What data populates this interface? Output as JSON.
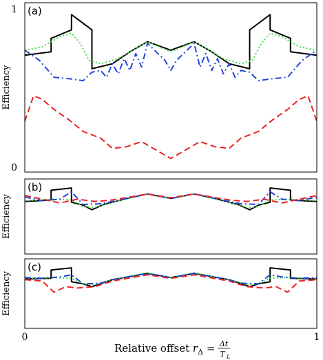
{
  "chart_data": [
    {
      "type": "line",
      "panel_label": "(a)",
      "ylabel": "Efficiency",
      "ytick_labels": [
        "0",
        "1"
      ],
      "xtick_labels": [],
      "xlim": [
        0,
        1
      ],
      "ylim": [
        0,
        1
      ],
      "series": [
        {
          "color": "#000000",
          "dash": "solid",
          "x": [
            0,
            0.09,
            0.09,
            0.16,
            0.16,
            0.23,
            0.23,
            0.3,
            0.36,
            0.42,
            0.5,
            0.58,
            0.64,
            0.7,
            0.77,
            0.77,
            0.84,
            0.84,
            0.91,
            0.91,
            1
          ],
          "y": [
            0.69,
            0.71,
            0.79,
            0.84,
            0.93,
            0.84,
            0.61,
            0.64,
            0.71,
            0.77,
            0.72,
            0.77,
            0.71,
            0.64,
            0.61,
            0.84,
            0.93,
            0.84,
            0.79,
            0.71,
            0.69
          ]
        },
        {
          "color": "#44dd44",
          "dash": "dot",
          "x": [
            0,
            0.06,
            0.12,
            0.16,
            0.19,
            0.22,
            0.26,
            0.32,
            0.38,
            0.42,
            0.5,
            0.58,
            0.62,
            0.68,
            0.74,
            0.78,
            0.81,
            0.84,
            0.88,
            0.94,
            1
          ],
          "y": [
            0.72,
            0.74,
            0.8,
            0.82,
            0.76,
            0.66,
            0.64,
            0.67,
            0.73,
            0.77,
            0.71,
            0.77,
            0.73,
            0.67,
            0.64,
            0.66,
            0.76,
            0.82,
            0.8,
            0.74,
            0.72
          ]
        },
        {
          "color": "#2244dd",
          "dash": "dashdot",
          "x": [
            0,
            0.05,
            0.1,
            0.16,
            0.2,
            0.23,
            0.26,
            0.28,
            0.3,
            0.32,
            0.34,
            0.36,
            0.38,
            0.4,
            0.42,
            0.48,
            0.5,
            0.52,
            0.58,
            0.6,
            0.62,
            0.64,
            0.66,
            0.68,
            0.7,
            0.72,
            0.74,
            0.77,
            0.8,
            0.84,
            0.9,
            0.95,
            1
          ],
          "y": [
            0.72,
            0.66,
            0.56,
            0.55,
            0.54,
            0.59,
            0.6,
            0.56,
            0.64,
            0.58,
            0.67,
            0.6,
            0.7,
            0.62,
            0.76,
            0.66,
            0.6,
            0.66,
            0.76,
            0.62,
            0.7,
            0.6,
            0.67,
            0.58,
            0.64,
            0.56,
            0.6,
            0.59,
            0.54,
            0.55,
            0.56,
            0.66,
            0.72
          ]
        },
        {
          "color": "#ee2222",
          "dash": "dash",
          "x": [
            0,
            0.03,
            0.06,
            0.1,
            0.15,
            0.2,
            0.26,
            0.3,
            0.35,
            0.4,
            0.45,
            0.5,
            0.55,
            0.6,
            0.65,
            0.7,
            0.74,
            0.8,
            0.85,
            0.9,
            0.94,
            0.97,
            1
          ],
          "y": [
            0.3,
            0.45,
            0.43,
            0.37,
            0.31,
            0.24,
            0.2,
            0.14,
            0.15,
            0.18,
            0.13,
            0.08,
            0.13,
            0.18,
            0.15,
            0.14,
            0.2,
            0.24,
            0.31,
            0.37,
            0.43,
            0.45,
            0.3
          ]
        }
      ]
    },
    {
      "type": "line",
      "panel_label": "(b)",
      "ylabel": "Efficiency",
      "ytick_labels": [],
      "xtick_labels": [],
      "xlim": [
        0,
        1
      ],
      "ylim": [
        0,
        1
      ],
      "series": [
        {
          "color": "#000000",
          "dash": "solid",
          "x": [
            0,
            0.09,
            0.09,
            0.16,
            0.16,
            0.2,
            0.23,
            0.27,
            0.3,
            0.35,
            0.42,
            0.5,
            0.58,
            0.65,
            0.7,
            0.73,
            0.77,
            0.8,
            0.84,
            0.84,
            0.91,
            0.91,
            1
          ],
          "y": [
            0.7,
            0.72,
            0.85,
            0.88,
            0.69,
            0.65,
            0.59,
            0.66,
            0.69,
            0.74,
            0.8,
            0.74,
            0.8,
            0.74,
            0.69,
            0.66,
            0.59,
            0.65,
            0.69,
            0.88,
            0.85,
            0.72,
            0.7
          ]
        },
        {
          "color": "#44dd44",
          "dash": "dot",
          "x": [
            0,
            0.1,
            0.16,
            0.2,
            0.24,
            0.3,
            0.42,
            0.5,
            0.58,
            0.7,
            0.76,
            0.8,
            0.84,
            0.9,
            1
          ],
          "y": [
            0.71,
            0.73,
            0.72,
            0.63,
            0.62,
            0.69,
            0.8,
            0.74,
            0.8,
            0.69,
            0.62,
            0.63,
            0.72,
            0.73,
            0.71
          ]
        },
        {
          "color": "#2244dd",
          "dash": "dashdot",
          "x": [
            0,
            0.06,
            0.12,
            0.16,
            0.2,
            0.26,
            0.3,
            0.42,
            0.5,
            0.58,
            0.7,
            0.74,
            0.8,
            0.84,
            0.88,
            0.94,
            1
          ],
          "y": [
            0.76,
            0.71,
            0.73,
            0.83,
            0.66,
            0.67,
            0.7,
            0.8,
            0.74,
            0.8,
            0.7,
            0.67,
            0.66,
            0.83,
            0.73,
            0.71,
            0.76
          ]
        },
        {
          "color": "#ee2222",
          "dash": "dash",
          "x": [
            0,
            0.06,
            0.12,
            0.18,
            0.24,
            0.3,
            0.42,
            0.5,
            0.58,
            0.7,
            0.76,
            0.82,
            0.88,
            0.94,
            1
          ],
          "y": [
            0.78,
            0.73,
            0.68,
            0.73,
            0.7,
            0.72,
            0.8,
            0.75,
            0.8,
            0.72,
            0.7,
            0.73,
            0.68,
            0.73,
            0.78
          ]
        }
      ]
    },
    {
      "type": "line",
      "panel_label": "(c)",
      "ylabel": "Efficiency",
      "ytick_labels": [],
      "xtick_labels": [
        "0",
        "1"
      ],
      "xlabel_main": "Relative offset ",
      "xlabel_var": "r",
      "xlabel_sub": "Δ",
      "xlabel_eq": " = ",
      "xlabel_num": "Δt",
      "xlabel_den": "T",
      "xlabel_den_sub": "L",
      "xlim": [
        0,
        1
      ],
      "ylim": [
        0,
        1
      ],
      "series": [
        {
          "color": "#000000",
          "dash": "solid",
          "x": [
            0,
            0.09,
            0.09,
            0.16,
            0.16,
            0.2,
            0.23,
            0.3,
            0.42,
            0.5,
            0.58,
            0.7,
            0.77,
            0.8,
            0.84,
            0.84,
            0.91,
            0.91,
            1
          ],
          "y": [
            0.71,
            0.72,
            0.84,
            0.87,
            0.67,
            0.64,
            0.6,
            0.7,
            0.79,
            0.73,
            0.79,
            0.7,
            0.6,
            0.64,
            0.67,
            0.87,
            0.84,
            0.72,
            0.71
          ]
        },
        {
          "color": "#44dd44",
          "dash": "dot",
          "x": [
            0,
            0.1,
            0.16,
            0.2,
            0.24,
            0.3,
            0.42,
            0.5,
            0.58,
            0.7,
            0.76,
            0.8,
            0.84,
            0.9,
            1
          ],
          "y": [
            0.72,
            0.73,
            0.72,
            0.64,
            0.63,
            0.7,
            0.8,
            0.73,
            0.8,
            0.7,
            0.63,
            0.64,
            0.72,
            0.73,
            0.72
          ]
        },
        {
          "color": "#2244dd",
          "dash": "dashdot",
          "x": [
            0,
            0.06,
            0.12,
            0.16,
            0.2,
            0.26,
            0.3,
            0.42,
            0.5,
            0.58,
            0.7,
            0.74,
            0.8,
            0.84,
            0.88,
            0.94,
            1
          ],
          "y": [
            0.73,
            0.72,
            0.74,
            0.77,
            0.64,
            0.65,
            0.7,
            0.79,
            0.73,
            0.79,
            0.7,
            0.65,
            0.64,
            0.77,
            0.74,
            0.72,
            0.73
          ]
        },
        {
          "color": "#ee2222",
          "dash": "dash",
          "x": [
            0,
            0.06,
            0.1,
            0.14,
            0.18,
            0.24,
            0.3,
            0.42,
            0.5,
            0.58,
            0.7,
            0.76,
            0.82,
            0.86,
            0.9,
            0.94,
            1
          ],
          "y": [
            0.7,
            0.68,
            0.52,
            0.6,
            0.58,
            0.6,
            0.68,
            0.77,
            0.72,
            0.77,
            0.68,
            0.6,
            0.58,
            0.6,
            0.52,
            0.68,
            0.7
          ]
        }
      ]
    }
  ]
}
